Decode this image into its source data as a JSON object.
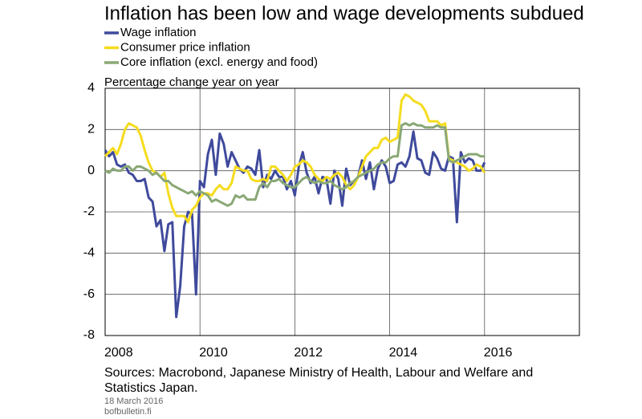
{
  "chart_data": {
    "type": "line",
    "title": "Inflation has been low and wage developments subdued",
    "y_label": "Percentage change year on year",
    "source": "Sources: Macrobond, Japanese Ministry of Health, Labour and Welfare and",
    "source_cont": "Statistics Japan.",
    "date": "18 March 2016",
    "site": "bofbulletin.fi",
    "x": [
      2008,
      2008.083,
      2008.167,
      2008.25,
      2008.333,
      2008.417,
      2008.5,
      2008.583,
      2008.667,
      2008.75,
      2008.833,
      2008.917,
      2009,
      2009.083,
      2009.167,
      2009.25,
      2009.333,
      2009.417,
      2009.5,
      2009.583,
      2009.667,
      2009.75,
      2009.833,
      2009.917,
      2010,
      2010.083,
      2010.167,
      2010.25,
      2010.333,
      2010.417,
      2010.5,
      2010.583,
      2010.667,
      2010.75,
      2010.833,
      2010.917,
      2011,
      2011.083,
      2011.167,
      2011.25,
      2011.333,
      2011.417,
      2011.5,
      2011.583,
      2011.667,
      2011.75,
      2011.833,
      2011.917,
      2012,
      2012.083,
      2012.167,
      2012.25,
      2012.333,
      2012.417,
      2012.5,
      2012.583,
      2012.667,
      2012.75,
      2012.833,
      2012.917,
      2013,
      2013.083,
      2013.167,
      2013.25,
      2013.333,
      2013.417,
      2013.5,
      2013.583,
      2013.667,
      2013.75,
      2013.833,
      2013.917,
      2014,
      2014.083,
      2014.167,
      2014.25,
      2014.333,
      2014.417,
      2014.5,
      2014.583,
      2014.667,
      2014.75,
      2014.833,
      2014.917,
      2015,
      2015.083,
      2015.167,
      2015.25,
      2015.333,
      2015.417,
      2015.5,
      2015.583,
      2015.667,
      2015.75,
      2015.833,
      2015.917,
      2016
    ],
    "series": [
      {
        "name": "Wage inflation",
        "color": "#3f4a9c",
        "values": [
          1.0,
          0.7,
          0.9,
          0.3,
          0.2,
          0.3,
          -0.1,
          -0.2,
          -0.5,
          -0.5,
          -0.4,
          -1.3,
          -1.5,
          -2.7,
          -2.4,
          -3.9,
          -2.6,
          -2.5,
          -7.1,
          -5.6,
          -2.7,
          -2.0,
          -2.1,
          -6.0,
          -0.5,
          -0.8,
          0.8,
          1.5,
          -0.2,
          1.8,
          1.3,
          0.2,
          0.9,
          0.5,
          0.1,
          -0.1,
          0.2,
          0.1,
          -0.2,
          1.0,
          -0.8,
          -0.2,
          -0.4,
          0.0,
          -0.3,
          -0.3,
          -0.9,
          -0.5,
          -1.2,
          0.2,
          0.9,
          -0.1,
          -0.6,
          -0.3,
          -1.1,
          -0.3,
          -0.4,
          -1.6,
          0.0,
          -0.4,
          -1.7,
          0.1,
          -0.7,
          -0.5,
          -0.3,
          0.5,
          -0.4,
          0.4,
          -0.9,
          0.1,
          0.5,
          0.2,
          -0.6,
          -0.5,
          0.3,
          0.4,
          0.2,
          0.7,
          1.9,
          0.6,
          0.5,
          -0.1,
          -0.2,
          0.9,
          0.6,
          0.1,
          0.0,
          0.7,
          0.6,
          -2.5,
          0.9,
          0.4,
          0.6,
          0.5,
          0.0,
          0.0,
          0.4
        ]
      },
      {
        "name": "Consumer price inflation",
        "color": "#f5dc1e",
        "values": [
          0.7,
          0.9,
          1.1,
          0.8,
          1.3,
          2.0,
          2.3,
          2.2,
          2.1,
          1.7,
          1.0,
          0.4,
          0.0,
          -0.1,
          -0.3,
          -0.1,
          -1.1,
          -1.8,
          -2.2,
          -2.2,
          -2.2,
          -2.5,
          -1.9,
          -1.7,
          -1.3,
          -1.1,
          -1.1,
          -1.2,
          -0.9,
          -0.7,
          -0.9,
          -0.9,
          -0.6,
          0.2,
          0.1,
          0.0,
          0.0,
          -0.4,
          -0.5,
          -0.5,
          -0.4,
          -0.5,
          0.2,
          0.2,
          0.0,
          -0.2,
          -0.5,
          -0.2,
          0.2,
          0.3,
          0.5,
          0.4,
          0.2,
          -0.2,
          -0.4,
          -0.5,
          -0.3,
          -0.4,
          -0.2,
          -0.1,
          -0.3,
          -0.7,
          -0.9,
          -0.7,
          -0.3,
          0.2,
          0.7,
          0.9,
          1.1,
          1.1,
          1.5,
          1.6,
          1.4,
          1.5,
          1.6,
          3.4,
          3.7,
          3.6,
          3.4,
          3.3,
          3.2,
          2.9,
          2.4,
          2.4,
          2.4,
          2.2,
          2.3,
          0.6,
          0.5,
          0.4,
          0.3,
          0.2,
          0.0,
          0.1,
          0.3,
          0.2,
          -0.1
        ]
      },
      {
        "name": "Core inflation (excl. energy and food)",
        "color": "#8aa876",
        "values": [
          0.0,
          -0.1,
          0.1,
          0.0,
          0.0,
          0.2,
          0.2,
          0.0,
          0.2,
          0.2,
          0.1,
          0.0,
          -0.2,
          -0.1,
          -0.3,
          -0.5,
          -0.5,
          -0.7,
          -0.8,
          -0.9,
          -1.0,
          -1.1,
          -1.0,
          -1.2,
          -1.0,
          -1.1,
          -1.2,
          -1.5,
          -1.4,
          -1.5,
          -1.6,
          -1.7,
          -1.6,
          -1.2,
          -1.3,
          -1.2,
          -1.4,
          -1.4,
          -1.4,
          -0.8,
          -0.6,
          -0.8,
          -0.5,
          -0.5,
          -0.4,
          -0.6,
          -0.7,
          -0.8,
          -0.8,
          -0.6,
          -0.4,
          -0.3,
          -0.5,
          -0.6,
          -0.5,
          -0.6,
          -0.6,
          -0.5,
          -0.7,
          -0.8,
          -0.9,
          -0.8,
          -0.6,
          -0.5,
          -0.3,
          -0.2,
          -0.1,
          0.0,
          0.1,
          0.3,
          0.4,
          0.4,
          0.6,
          0.7,
          0.7,
          2.2,
          2.3,
          2.2,
          2.3,
          2.2,
          2.2,
          2.1,
          2.1,
          2.1,
          2.2,
          2.1,
          2.1,
          0.5,
          0.4,
          0.5,
          0.6,
          0.7,
          0.8,
          0.8,
          0.8,
          0.7,
          0.7
        ]
      }
    ],
    "xlim": [
      2008,
      2018
    ],
    "xticks": [
      2008,
      2010,
      2012,
      2014,
      2016
    ],
    "ylim": [
      -8,
      4
    ],
    "yticks": [
      -8,
      -6,
      -4,
      -2,
      0,
      2,
      4
    ],
    "grid": true
  }
}
